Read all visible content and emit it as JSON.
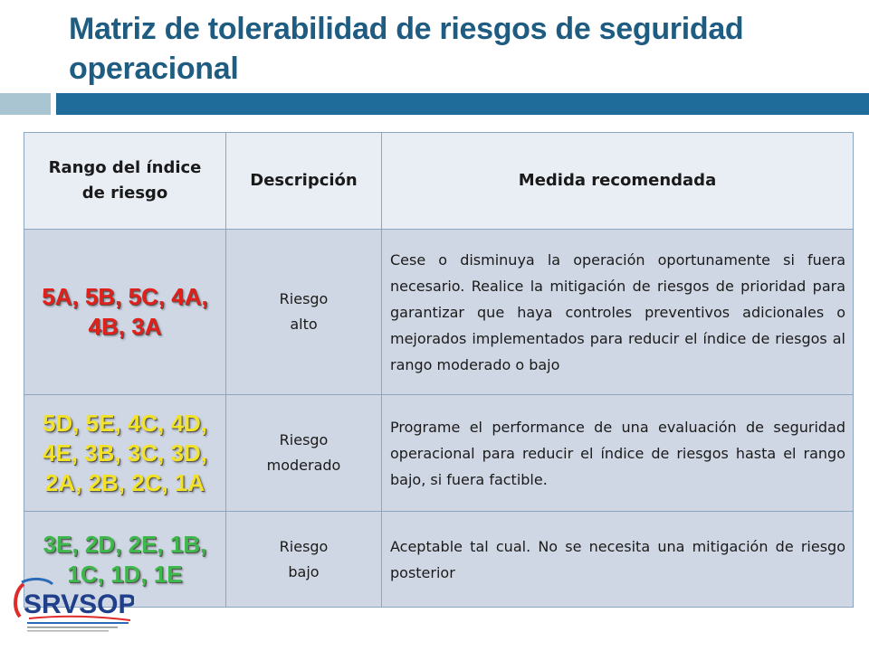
{
  "title": "Matriz de tolerabilidad de riesgos de seguridad operacional",
  "table": {
    "headers": [
      "Rango del índice de riesgo",
      "Descripción",
      "Medida recomendada"
    ],
    "rows": [
      {
        "range": "5A, 5B, 5C, 4A, 4B, 3A",
        "range_color": "#e0201b",
        "desc_line1": "Riesgo",
        "desc_line2": "alto",
        "measure": "Cese o disminuya la operación oportunamente si fuera necesario. Realice la mitigación de riesgos de prioridad para garantizar que haya controles preventivos adicionales o mejorados implementados para reducir el índice de riesgos al rango moderado o bajo"
      },
      {
        "range": "5D, 5E, 4C, 4D, 4E, 3B, 3C, 3D, 2A, 2B, 2C, 1A",
        "range_color": "#f2e22a",
        "desc_line1": "Riesgo",
        "desc_line2": "moderado",
        "measure": "Programe el performance de una evaluación de seguridad operacional para reducir el índice de riesgos hasta el rango bajo, si fuera factible."
      },
      {
        "range": "3E, 2D, 2E, 1B, 1C, 1D, 1E",
        "range_color": "#3db84a",
        "desc_line1": "Riesgo",
        "desc_line2": "bajo",
        "measure": "Aceptable tal cual. No se necesita una mitigación de riesgo posterior"
      }
    ]
  },
  "logo_text": "SRVSOP"
}
